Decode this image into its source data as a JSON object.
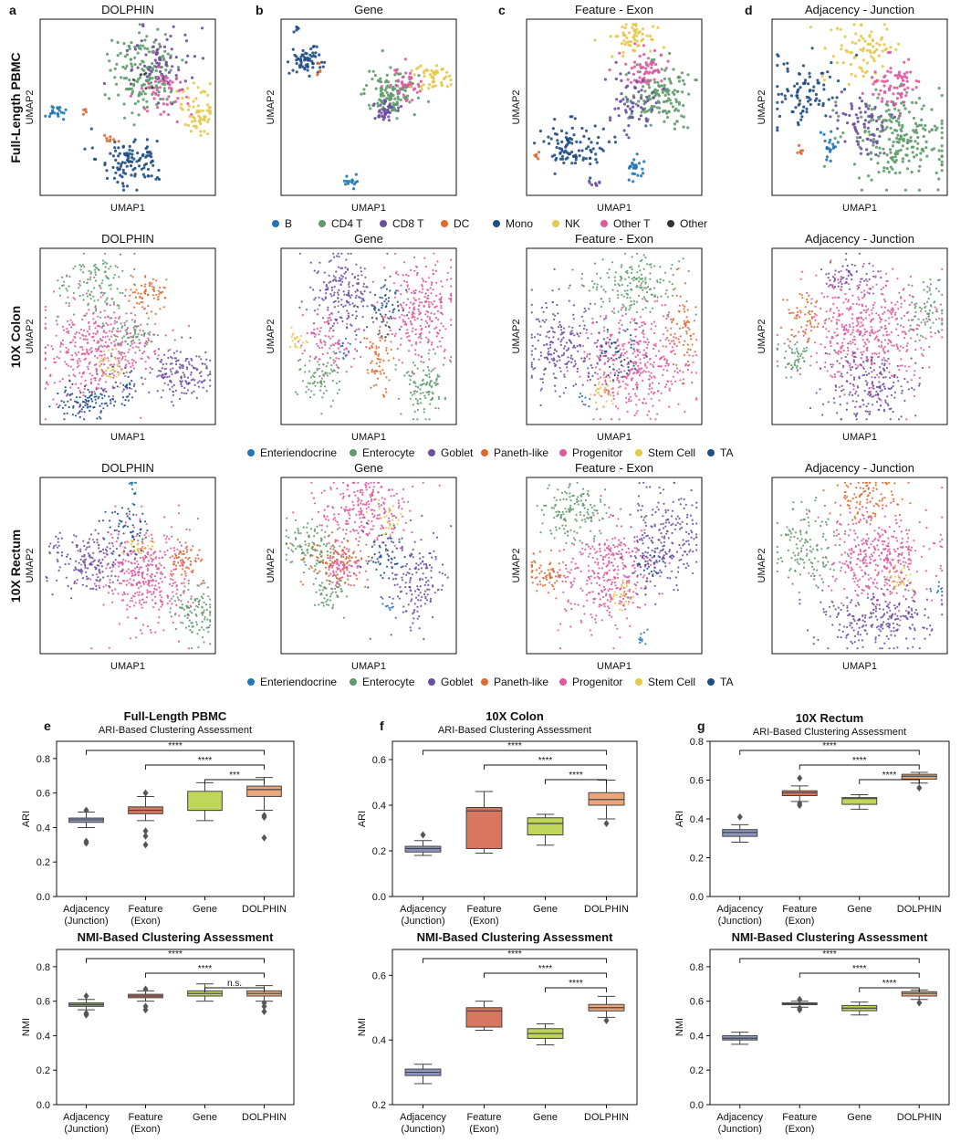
{
  "colors": {
    "B": "#1f77b4",
    "CD4 T": "#5e9b6a",
    "CD8 T": "#6b4ea2",
    "DC": "#e0692e",
    "Mono": "#1f4e84",
    "NK": "#e6c84a",
    "Other T": "#e0589e",
    "Other": "#333333",
    "Enteriendocrine": "#1f77b4",
    "Enterocyte": "#5e9b6a",
    "Goblet": "#6b4ea2",
    "Paneth-like": "#e0692e",
    "Progenitor": "#e0589e",
    "Stem Cell": "#e6c84a",
    "TA": "#1f4e84",
    "box_adjacency": "#8e98c2",
    "box_feature": "#d9765f",
    "box_gene": "#bfd65a",
    "box_dolphin": "#eba77a"
  },
  "umap": {
    "row_labels": [
      "Full-Length PBMC",
      "10X Colon",
      "10X Rectum"
    ],
    "panel_letters": [
      "a",
      "b",
      "c",
      "d"
    ],
    "column_titles": [
      "DOLPHIN",
      "Gene",
      "Feature - Exon",
      "Adjacency - Junction"
    ],
    "xlabel": "UMAP1",
    "ylabel": "UMAP2",
    "legend_pbmc": [
      "B",
      "CD4 T",
      "CD8 T",
      "DC",
      "Mono",
      "NK",
      "Other T",
      "Other"
    ],
    "legend_colon": [
      "Enteriendocrine",
      "Enterocyte",
      "Goblet",
      "Paneth-like",
      "Progenitor",
      "Stem Cell",
      "TA"
    ],
    "legend_rectum": [
      "Enteriendocrine",
      "Enterocyte",
      "Goblet",
      "Paneth-like",
      "Progenitor",
      "Stem Cell",
      "TA"
    ]
  },
  "chart_data": [
    {
      "type": "box",
      "panel": "e",
      "title": "Full-Length PBMC",
      "subtitle": "ARI-Based Clustering Assessment",
      "ylabel": "ARI",
      "ylim": [
        0,
        0.9
      ],
      "yticks": [
        "0.0",
        "0.2",
        "0.4",
        "0.6",
        "0.8"
      ],
      "categories": [
        "Adjacency\n(Junction)",
        "Feature\n(Exon)",
        "Gene",
        "DOLPHIN"
      ],
      "boxes": [
        {
          "q1": 0.43,
          "median": 0.445,
          "q3": 0.455,
          "whislo": 0.4,
          "whishi": 0.49,
          "fliers": [
            0.32,
            0.31,
            0.5
          ]
        },
        {
          "q1": 0.48,
          "median": 0.5,
          "q3": 0.52,
          "whislo": 0.44,
          "whishi": 0.58,
          "fliers": [
            0.3,
            0.35,
            0.38,
            0.6
          ]
        },
        {
          "q1": 0.5,
          "median": 0.5,
          "q3": 0.61,
          "whislo": 0.44,
          "whishi": 0.66,
          "fliers": []
        },
        {
          "q1": 0.58,
          "median": 0.62,
          "q3": 0.64,
          "whislo": 0.5,
          "whishi": 0.69,
          "fliers": [
            0.34,
            0.46,
            0.47
          ]
        }
      ],
      "significance": [
        {
          "from": 0,
          "to": 3,
          "label": "****"
        },
        {
          "from": 1,
          "to": 3,
          "label": "****"
        },
        {
          "from": 2,
          "to": 3,
          "label": "***"
        }
      ]
    },
    {
      "type": "box",
      "panel": "f",
      "title": "10X Colon",
      "subtitle": "ARI-Based Clustering Assessment",
      "ylabel": "ARI",
      "ylim": [
        0,
        0.68
      ],
      "yticks": [
        "0.0",
        "0.2",
        "0.4",
        "0.6"
      ],
      "categories": [
        "Adjacency\n(Junction)",
        "Feature\n(Exon)",
        "Gene",
        "DOLPHIN"
      ],
      "boxes": [
        {
          "q1": 0.195,
          "median": 0.21,
          "q3": 0.22,
          "whislo": 0.18,
          "whishi": 0.245,
          "fliers": [
            0.27
          ]
        },
        {
          "q1": 0.21,
          "median": 0.375,
          "q3": 0.39,
          "whislo": 0.19,
          "whishi": 0.46,
          "fliers": []
        },
        {
          "q1": 0.27,
          "median": 0.32,
          "q3": 0.345,
          "whislo": 0.225,
          "whishi": 0.36,
          "fliers": []
        },
        {
          "q1": 0.4,
          "median": 0.425,
          "q3": 0.455,
          "whislo": 0.34,
          "whishi": 0.51,
          "fliers": [
            0.32
          ]
        }
      ],
      "significance": [
        {
          "from": 0,
          "to": 3,
          "label": "****"
        },
        {
          "from": 1,
          "to": 3,
          "label": "****"
        },
        {
          "from": 2,
          "to": 3,
          "label": "****"
        }
      ]
    },
    {
      "type": "box",
      "panel": "g",
      "title": "10X Rectum",
      "subtitle": "ARI-Based Clustering Assessment",
      "ylabel": "ARI",
      "ylim": [
        0,
        0.8
      ],
      "yticks": [
        "0.0",
        "0.2",
        "0.4",
        "0.6",
        "0.8"
      ],
      "categories": [
        "Adjacency\n(Junction)",
        "Feature\n(Exon)",
        "Gene",
        "DOLPHIN"
      ],
      "boxes": [
        {
          "q1": 0.31,
          "median": 0.33,
          "q3": 0.345,
          "whislo": 0.28,
          "whishi": 0.37,
          "fliers": [
            0.41
          ]
        },
        {
          "q1": 0.52,
          "median": 0.535,
          "q3": 0.545,
          "whislo": 0.49,
          "whishi": 0.57,
          "fliers": [
            0.47,
            0.48,
            0.61
          ]
        },
        {
          "q1": 0.475,
          "median": 0.505,
          "q3": 0.51,
          "whislo": 0.45,
          "whishi": 0.525,
          "fliers": []
        },
        {
          "q1": 0.605,
          "median": 0.62,
          "q3": 0.63,
          "whislo": 0.585,
          "whishi": 0.64,
          "fliers": [
            0.56
          ]
        }
      ],
      "significance": [
        {
          "from": 0,
          "to": 3,
          "label": "****"
        },
        {
          "from": 1,
          "to": 3,
          "label": "****"
        },
        {
          "from": 2,
          "to": 3,
          "label": "****"
        }
      ]
    },
    {
      "type": "box",
      "panel": "e2",
      "title": "NMI-Based Clustering Assessment",
      "ylabel": "NMI",
      "ylim": [
        0,
        0.9
      ],
      "yticks": [
        "0.0",
        "0.2",
        "0.4",
        "0.6",
        "0.8"
      ],
      "categories": [
        "Adjacency\n(Junction)",
        "Feature\n(Exon)",
        "Gene",
        "DOLPHIN"
      ],
      "boxes": [
        {
          "q1": 0.57,
          "median": 0.58,
          "q3": 0.59,
          "whislo": 0.55,
          "whishi": 0.61,
          "fliers": [
            0.52,
            0.53,
            0.63
          ]
        },
        {
          "q1": 0.62,
          "median": 0.63,
          "q3": 0.64,
          "whislo": 0.6,
          "whishi": 0.66,
          "fliers": [
            0.55,
            0.57,
            0.67
          ]
        },
        {
          "q1": 0.63,
          "median": 0.645,
          "q3": 0.66,
          "whislo": 0.6,
          "whishi": 0.7,
          "fliers": []
        },
        {
          "q1": 0.63,
          "median": 0.645,
          "q3": 0.66,
          "whislo": 0.6,
          "whishi": 0.69,
          "fliers": [
            0.54,
            0.57,
            0.59
          ]
        }
      ],
      "significance": [
        {
          "from": 0,
          "to": 3,
          "label": "****"
        },
        {
          "from": 1,
          "to": 3,
          "label": "****"
        },
        {
          "from": 2,
          "to": 3,
          "label": "n.s."
        }
      ]
    },
    {
      "type": "box",
      "panel": "f2",
      "title": "NMI-Based Clustering Assessment",
      "ylabel": "NMI",
      "ylim": [
        0.2,
        0.68
      ],
      "yticks": [
        "0.2",
        "0.4",
        "0.6"
      ],
      "categories": [
        "Adjacency\n(Junction)",
        "Feature\n(Exon)",
        "Gene",
        "DOLPHIN"
      ],
      "boxes": [
        {
          "q1": 0.29,
          "median": 0.3,
          "q3": 0.31,
          "whislo": 0.265,
          "whishi": 0.325,
          "fliers": []
        },
        {
          "q1": 0.44,
          "median": 0.49,
          "q3": 0.5,
          "whislo": 0.43,
          "whishi": 0.52,
          "fliers": []
        },
        {
          "q1": 0.405,
          "median": 0.42,
          "q3": 0.435,
          "whislo": 0.385,
          "whishi": 0.45,
          "fliers": []
        },
        {
          "q1": 0.49,
          "median": 0.5,
          "q3": 0.51,
          "whislo": 0.47,
          "whishi": 0.535,
          "fliers": [
            0.46
          ]
        }
      ],
      "significance": [
        {
          "from": 0,
          "to": 3,
          "label": "****"
        },
        {
          "from": 1,
          "to": 3,
          "label": "****"
        },
        {
          "from": 2,
          "to": 3,
          "label": "****"
        }
      ]
    },
    {
      "type": "box",
      "panel": "g2",
      "title": "NMI-Based Clustering Assessment",
      "ylabel": "NMI",
      "ylim": [
        0,
        0.9
      ],
      "yticks": [
        "0.0",
        "0.2",
        "0.4",
        "0.6",
        "0.8"
      ],
      "categories": [
        "Adjacency\n(Junction)",
        "Feature\n(Exon)",
        "Gene",
        "DOLPHIN"
      ],
      "boxes": [
        {
          "q1": 0.375,
          "median": 0.385,
          "q3": 0.4,
          "whislo": 0.35,
          "whishi": 0.42,
          "fliers": []
        },
        {
          "q1": 0.58,
          "median": 0.585,
          "q3": 0.59,
          "whislo": 0.565,
          "whishi": 0.6,
          "fliers": [
            0.55,
            0.56,
            0.61
          ]
        },
        {
          "q1": 0.545,
          "median": 0.56,
          "q3": 0.575,
          "whislo": 0.52,
          "whishi": 0.595,
          "fliers": []
        },
        {
          "q1": 0.63,
          "median": 0.645,
          "q3": 0.655,
          "whislo": 0.61,
          "whishi": 0.665,
          "fliers": [
            0.59
          ]
        }
      ],
      "significance": [
        {
          "from": 0,
          "to": 3,
          "label": "****"
        },
        {
          "from": 1,
          "to": 3,
          "label": "****"
        },
        {
          "from": 2,
          "to": 3,
          "label": "****"
        }
      ]
    }
  ]
}
